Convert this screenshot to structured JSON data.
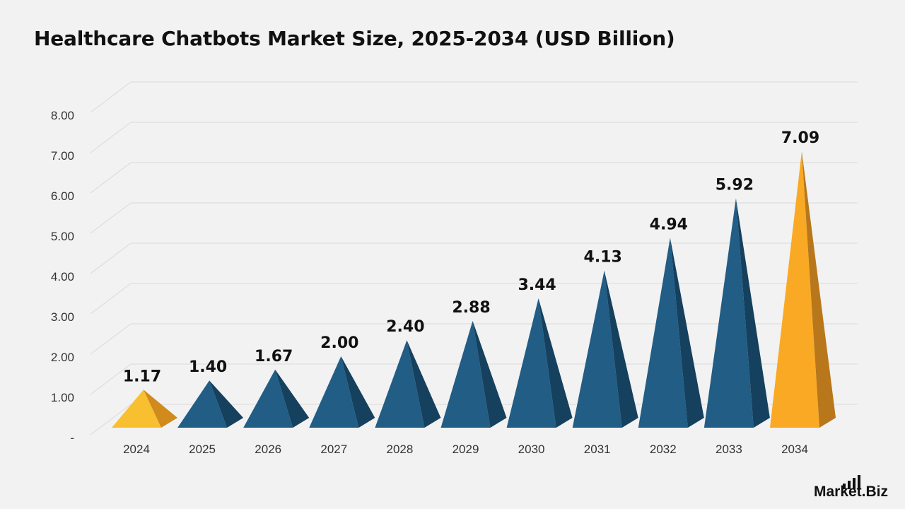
{
  "title": "Healthcare Chatbots Market Size, 2025-2034 (USD Billion)",
  "chart_data": {
    "type": "bar",
    "title": "Healthcare Chatbots Market Size, 2025-2034 (USD Billion)",
    "xlabel": "",
    "ylabel": "",
    "categories": [
      "2024",
      "2025",
      "2026",
      "2027",
      "2028",
      "2029",
      "2030",
      "2031",
      "2032",
      "2033",
      "2034"
    ],
    "values": [
      1.17,
      1.4,
      1.67,
      2.0,
      2.4,
      2.88,
      3.44,
      4.13,
      4.94,
      5.92,
      7.09
    ],
    "value_labels": [
      "1.17",
      "1.40",
      "1.67",
      "2.00",
      "2.40",
      "2.88",
      "3.44",
      "4.13",
      "4.94",
      "5.92",
      "7.09"
    ],
    "ylim": [
      0,
      8
    ],
    "yticks": [
      0,
      1,
      2,
      3,
      4,
      5,
      6,
      7,
      8
    ],
    "ytick_labels": [
      "-",
      "1.00",
      "2.00",
      "3.00",
      "4.00",
      "5.00",
      "6.00",
      "7.00",
      "8.00"
    ],
    "grid": true,
    "mark_shape": "3d-pyramid",
    "colors": {
      "2024": [
        "#f8c030",
        "#d18a1c"
      ],
      "default": [
        "#215d85",
        "#15405e"
      ],
      "2034": [
        "#f9a923",
        "#b8771a"
      ]
    }
  },
  "logo": {
    "text": "Market.Biz"
  }
}
